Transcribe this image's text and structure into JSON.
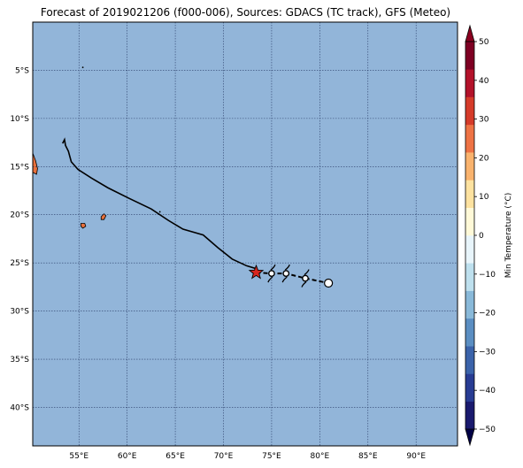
{
  "title": "Forecast of 2019021206 (f000-006), Sources: GDACS (TC track), GFS (Meteo)",
  "colors": {
    "ocean": "#92b5d9",
    "land": "#e8703c",
    "track": "#000000",
    "storm_marker": "#d7261e"
  },
  "map": {
    "lon_range": [
      50.2,
      94.3
    ],
    "lat_range": [
      -44.0,
      0.0
    ],
    "grid": true,
    "x_ticks": [
      55,
      60,
      65,
      70,
      75,
      80,
      85,
      90
    ],
    "x_tick_labels": [
      "55°E",
      "60°E",
      "65°E",
      "70°E",
      "75°E",
      "80°E",
      "85°E",
      "90°E"
    ],
    "y_ticks": [
      -5,
      -10,
      -15,
      -20,
      -25,
      -30,
      -35,
      -40
    ],
    "y_tick_labels": [
      "5°S",
      "10°S",
      "15°S",
      "20°S",
      "25°S",
      "30°S",
      "35°S",
      "40°S"
    ],
    "track_past": [
      [
        53.3,
        -12.6
      ],
      [
        53.5,
        -12.2
      ],
      [
        53.6,
        -12.8
      ],
      [
        53.9,
        -13.4
      ],
      [
        54.2,
        -14.5
      ],
      [
        54.9,
        -15.3
      ],
      [
        56.3,
        -16.2
      ],
      [
        58.0,
        -17.2
      ],
      [
        60.2,
        -18.3
      ],
      [
        62.5,
        -19.4
      ],
      [
        64.3,
        -20.6
      ],
      [
        65.8,
        -21.5
      ],
      [
        67.9,
        -22.1
      ],
      [
        69.4,
        -23.4
      ],
      [
        70.9,
        -24.6
      ],
      [
        72.4,
        -25.3
      ],
      [
        73.4,
        -25.6
      ]
    ],
    "current_position": [
      73.4,
      -26.0
    ],
    "forecast_positions": [
      [
        75.0,
        -26.1
      ],
      [
        76.5,
        -26.1
      ],
      [
        78.5,
        -26.6
      ],
      [
        80.9,
        -27.1
      ]
    ],
    "islands": [
      {
        "name": "Madagascar-edge",
        "points": [
          [
            50.2,
            -13.6
          ],
          [
            50.5,
            -14.4
          ],
          [
            50.7,
            -15.2
          ],
          [
            50.6,
            -15.8
          ],
          [
            50.2,
            -15.6
          ]
        ]
      },
      {
        "name": "Reunion",
        "points": [
          [
            55.2,
            -20.9
          ],
          [
            55.6,
            -20.9
          ],
          [
            55.7,
            -21.2
          ],
          [
            55.4,
            -21.4
          ],
          [
            55.2,
            -21.2
          ]
        ]
      },
      {
        "name": "Mauritius",
        "points": [
          [
            57.3,
            -20.2
          ],
          [
            57.6,
            -19.9
          ],
          [
            57.8,
            -20.1
          ],
          [
            57.6,
            -20.5
          ],
          [
            57.3,
            -20.5
          ]
        ]
      }
    ],
    "specks": [
      [
        55.4,
        -4.7
      ],
      [
        63.4,
        -19.7
      ]
    ]
  },
  "colorbar": {
    "label": "Min Temperature (°C)",
    "range": [
      -50,
      50
    ],
    "ticks": [
      50,
      40,
      30,
      20,
      10,
      0,
      -10,
      -20,
      -30,
      -40,
      -50
    ],
    "tick_labels": [
      "50",
      "40",
      "30",
      "20",
      "10",
      "0",
      "−10",
      "−20",
      "−30",
      "−40",
      "−50"
    ],
    "bands": [
      "#1a1a6e",
      "#283c93",
      "#3b63aa",
      "#5b8ec2",
      "#89b9d9",
      "#bee0ee",
      "#e8f5fb",
      "#fff9d8",
      "#fde2a0",
      "#f9b36e",
      "#ee7345",
      "#d53b2a",
      "#b3122a",
      "#7e0023"
    ]
  }
}
